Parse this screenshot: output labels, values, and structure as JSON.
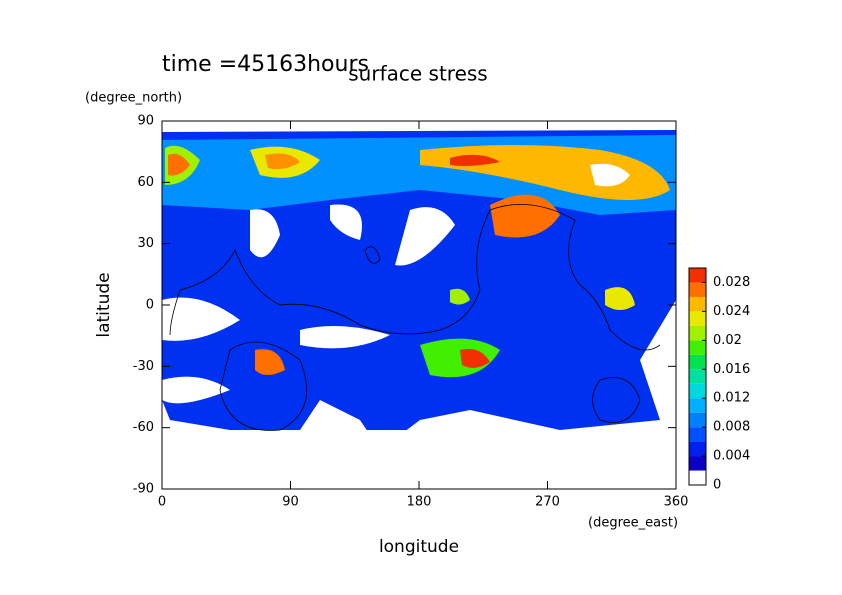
{
  "chart_data": {
    "type": "contour",
    "title": "surface stress",
    "subtitle": "time =45163hours",
    "x_label": "longitude",
    "x_units": "(degree_east)",
    "y_label": "latitude",
    "y_units": "(degree_north)",
    "xlim": [
      0,
      360
    ],
    "xticks": [
      0,
      90,
      180,
      270,
      360
    ],
    "ylim": [
      -90,
      90
    ],
    "yticks": [
      -90,
      -60,
      -30,
      0,
      30,
      60,
      90
    ],
    "clim": [
      0,
      0.03
    ],
    "cticks": [
      0,
      0.004,
      0.008,
      0.012,
      0.016,
      0.02,
      0.024,
      0.028
    ],
    "colors": [
      "#ffffff",
      "#0a00c8",
      "#0020f0",
      "#0050ff",
      "#0080ff",
      "#00b0ff",
      "#00d8e0",
      "#00e0a0",
      "#00e050",
      "#40f000",
      "#a0f000",
      "#e8e800",
      "#ffb800",
      "#ff7000",
      "#f03000"
    ]
  }
}
